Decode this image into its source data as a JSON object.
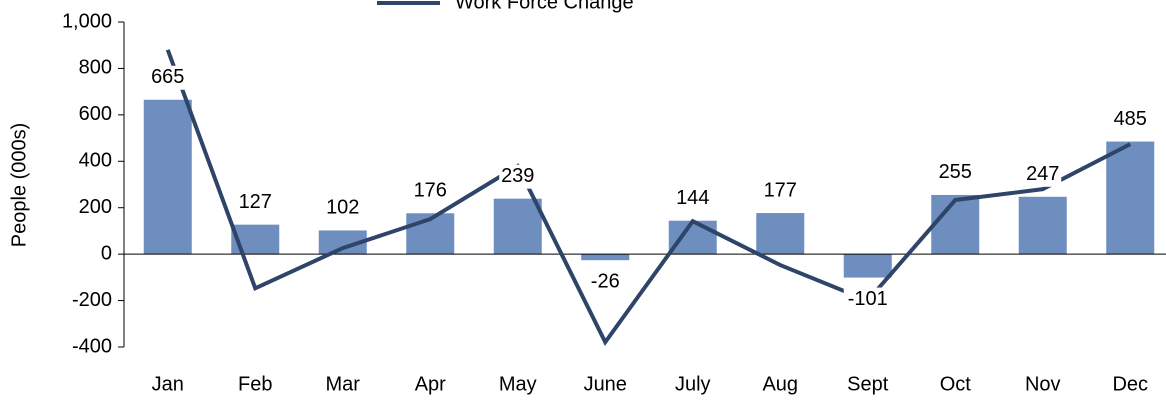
{
  "chart_data": {
    "type": "bar-line",
    "y_label": "People (000s)",
    "categories": [
      "Jan",
      "Feb",
      "Mar",
      "Apr",
      "May",
      "June",
      "July",
      "Aug",
      "Sept",
      "Oct",
      "Nov",
      "Dec"
    ],
    "series": [
      {
        "type": "bar",
        "color": "#6d8ebf",
        "values": [
          665,
          127,
          102,
          176,
          239,
          -26,
          144,
          177,
          -101,
          255,
          247,
          485
        ]
      },
      {
        "type": "line",
        "name": "Work Force Change",
        "color": "#2e4468",
        "values": [
          880,
          -147,
          26,
          151,
          380,
          -379,
          142,
          -47,
          -200,
          233,
          280,
          474
        ]
      }
    ],
    "ylim": [
      -400,
      1000
    ],
    "yticks": [
      -400,
      -200,
      0,
      200,
      400,
      600,
      800,
      {
        "value": 1000,
        "label": "1,000"
      }
    ],
    "legend": "top"
  }
}
